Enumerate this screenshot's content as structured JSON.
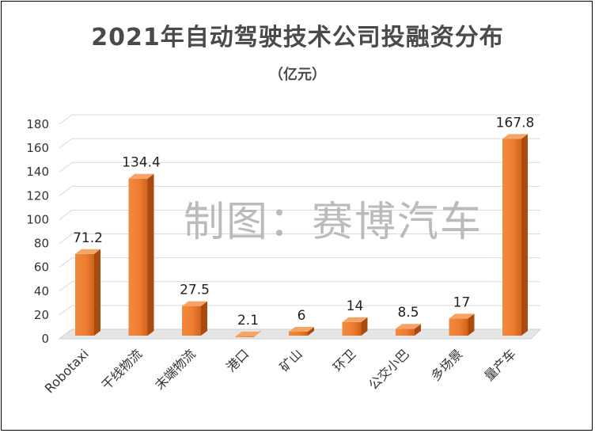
{
  "title": "2021年自动驾驶技术公司投融资分布",
  "subtitle": "（亿元）",
  "watermark": "制图：赛博汽车",
  "chart_data": {
    "type": "bar",
    "title": "2021年自动驾驶技术公司投融资分布",
    "subtitle": "（亿元）",
    "xlabel": "",
    "ylabel": "",
    "ylim": [
      0,
      180
    ],
    "yticks": [
      0,
      20,
      40,
      60,
      80,
      100,
      120,
      140,
      160,
      180
    ],
    "grid": true,
    "legend": "none",
    "categories": [
      "Robotaxi",
      "干线物流",
      "末端物流",
      "港口",
      "矿山",
      "环卫",
      "公交小巴",
      "多场景",
      "量产车"
    ],
    "values": [
      71.2,
      134.4,
      27.5,
      2.1,
      6,
      14,
      8.5,
      17,
      167.8
    ],
    "value_labels": [
      "71.2",
      "134.4",
      "27.5",
      "2.1",
      "6",
      "14",
      "8.5",
      "17",
      "167.8"
    ],
    "colors": {
      "bar_front": "#ee7d31",
      "bar_front_dark": "#c65a15",
      "bar_top": "#f6a466",
      "bar_side": "#a94b0f",
      "grid": "#d9d9d9",
      "floor": "#e6e6e6"
    }
  }
}
